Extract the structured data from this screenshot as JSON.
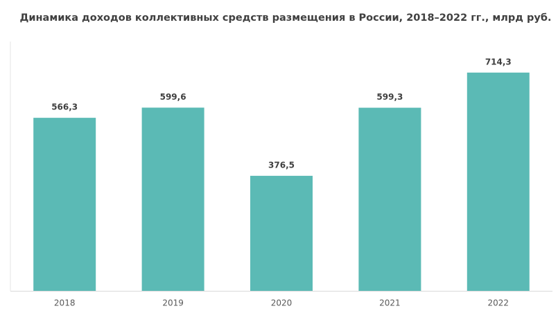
{
  "chart_data": {
    "type": "bar",
    "title": "Динамика доходов коллективных средств размещения в России, 2018–2022 гг., млрд руб.",
    "categories": [
      "2018",
      "2019",
      "2020",
      "2021",
      "2022"
    ],
    "values": [
      566.3,
      599.6,
      376.5,
      599.3,
      714.3
    ],
    "value_labels": [
      "566,3",
      "599,6",
      "376,5",
      "599,3",
      "714,3"
    ],
    "color": "#5bbab5",
    "ylim": [
      0,
      800
    ]
  }
}
